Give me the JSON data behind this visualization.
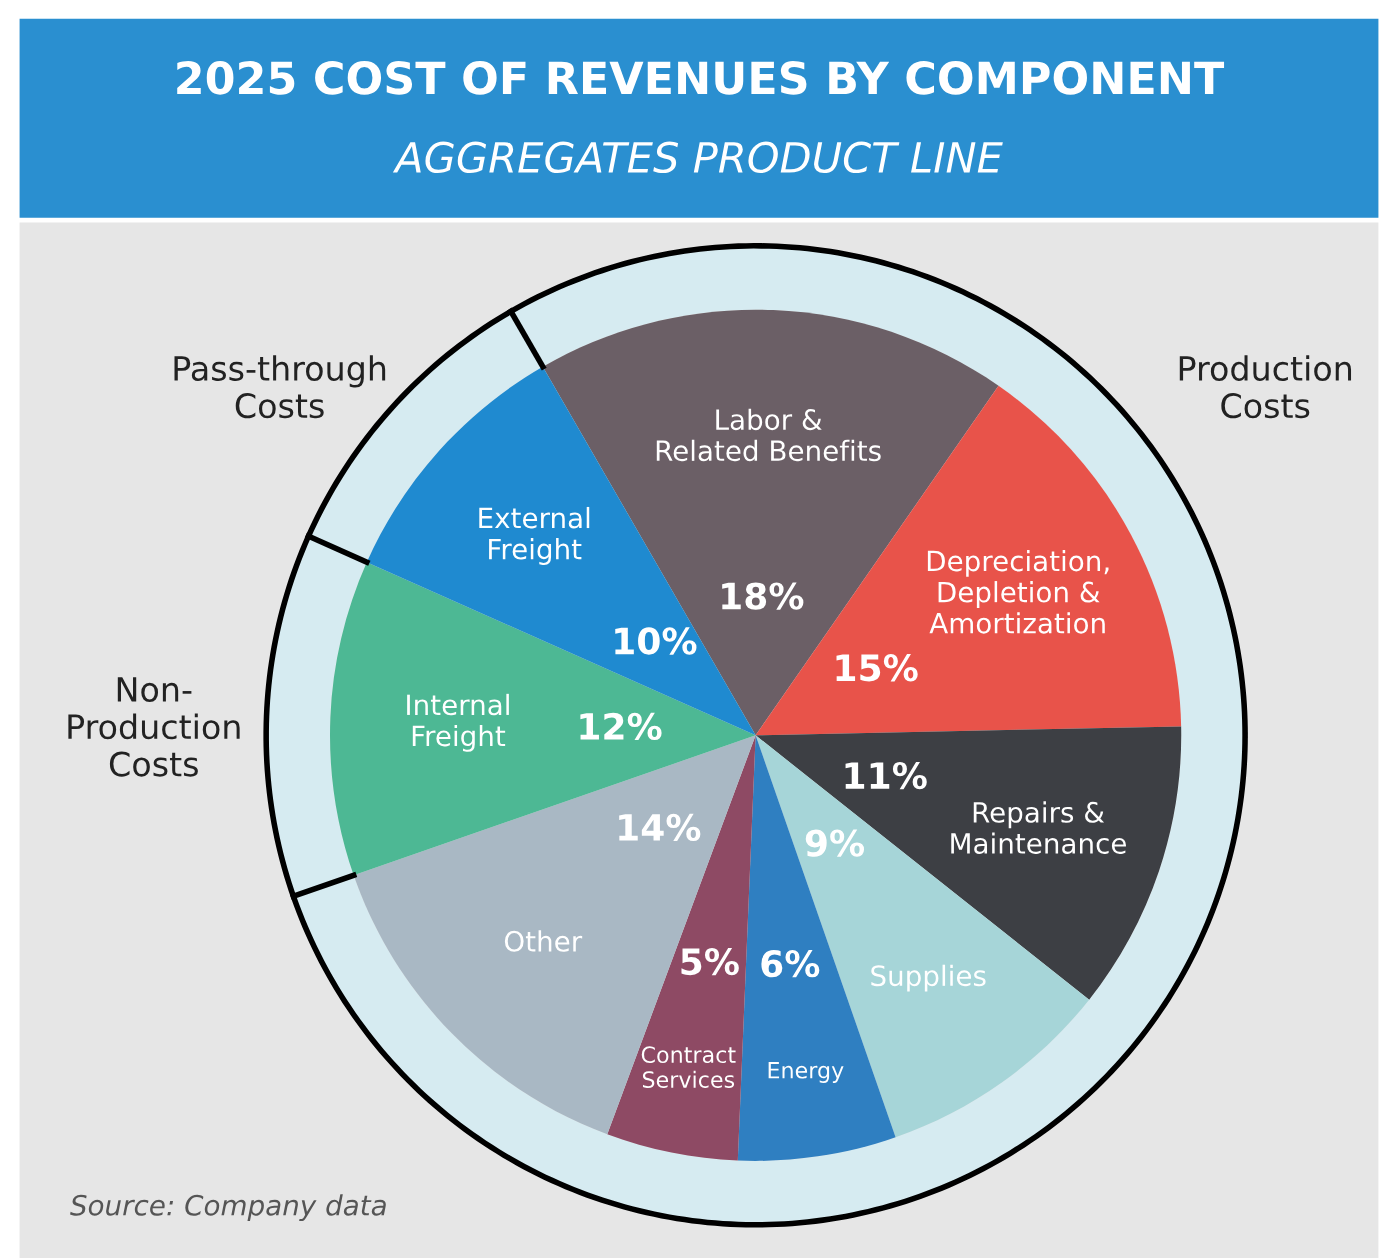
{
  "chart_data": {
    "type": "pie",
    "title": "2025 COST OF REVENUES BY COMPONENT",
    "subtitle": "AGGREGATES PRODUCT LINE",
    "categories": [
      "Labor &\nRelated Benefits",
      "Depreciation,\nDepletion &\nAmortization",
      "Repairs &\nMaintenance",
      "Supplies",
      "Energy",
      "Contract\nServices",
      "Other",
      "Internal\nFreight",
      "External\nFreight"
    ],
    "values": [
      18,
      15,
      11,
      9,
      6,
      5,
      14,
      12,
      10
    ],
    "value_labels": [
      "18%",
      "15%",
      "11%",
      "9%",
      "6%",
      "5%",
      "14%",
      "12%",
      "10%"
    ],
    "colors": [
      "#6b5f66",
      "#e8534a",
      "#3d3f44",
      "#a6d5d8",
      "#2f7fc1",
      "#8e4a64",
      "#a9b8c4",
      "#4db894",
      "#1f8ad0"
    ],
    "annotations": [
      "Production\nCosts",
      "Pass-through\nCosts",
      "Non-\nProduction\nCosts",
      "Source: Company data"
    ],
    "legend": false
  }
}
